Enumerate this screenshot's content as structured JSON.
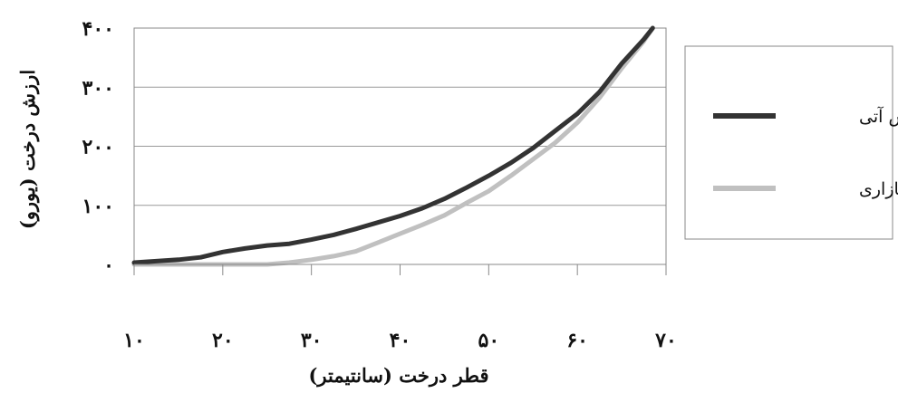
{
  "chart_data": {
    "type": "line",
    "xlabel": "قطر درخت (سانتیمتر)",
    "ylabel": "ارزش درخت (یورو)",
    "x_ticks": [
      "۱۰",
      "۲۰",
      "۳۰",
      "۴۰",
      "۵۰",
      "۶۰",
      "۷۰"
    ],
    "y_ticks": [
      "۰",
      "۱۰۰",
      "۲۰۰",
      "۳۰۰",
      "۴۰۰"
    ],
    "xlim": [
      10,
      70
    ],
    "ylim": [
      0,
      400
    ],
    "grid": "horizontal",
    "legend_position": "right",
    "x": [
      10,
      15,
      17.5,
      20,
      22.5,
      25,
      27.5,
      30,
      32.5,
      35,
      37.5,
      40,
      42.5,
      45,
      47.5,
      50,
      52.5,
      55,
      57.5,
      60,
      62.5,
      65,
      67.5,
      68.5
    ],
    "series": [
      {
        "name": "ارزش آتی",
        "color": "#333333",
        "values": [
          3,
          8,
          12,
          21,
          27,
          32,
          35,
          42,
          50,
          60,
          71,
          82,
          95,
          111,
          130,
          150,
          172,
          197,
          226,
          255,
          292,
          340,
          381,
          400
        ]
      },
      {
        "name": "ارزش بازاری",
        "color": "#c0c0c0",
        "values": [
          0,
          0,
          0,
          0,
          0,
          0,
          3,
          8,
          14,
          22,
          37,
          52,
          67,
          83,
          104,
          124,
          150,
          178,
          206,
          240,
          282,
          332,
          378,
          400
        ]
      }
    ]
  }
}
